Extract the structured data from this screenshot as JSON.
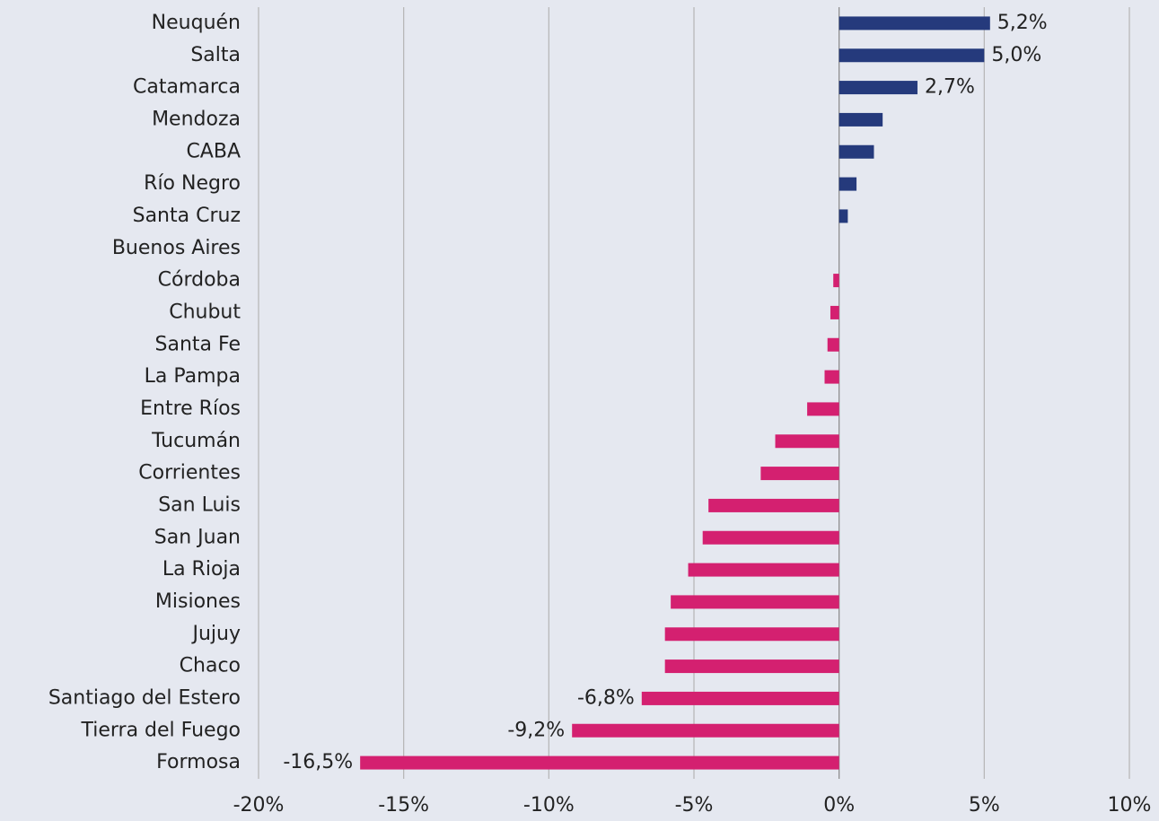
{
  "chart_data": {
    "type": "barh",
    "categories": [
      "Neuquén",
      "Salta",
      "Catamarca",
      "Mendoza",
      "CABA",
      "Río Negro",
      "Santa Cruz",
      "Buenos Aires",
      "Córdoba",
      "Chubut",
      "Santa Fe",
      "La Pampa",
      "Entre Ríos",
      "Tucumán",
      "Corrientes",
      "San Luis",
      "San Juan",
      "La Rioja",
      "Misiones",
      "Jujuy",
      "Chaco",
      "Santiago del Estero",
      "Tierra del Fuego",
      "Formosa"
    ],
    "values": [
      5.2,
      5.0,
      2.7,
      1.5,
      1.2,
      0.6,
      0.3,
      0.0,
      -0.2,
      -0.3,
      -0.4,
      -0.5,
      -1.1,
      -2.2,
      -2.7,
      -4.5,
      -4.7,
      -5.2,
      -5.8,
      -6.0,
      -6.0,
      -6.8,
      -9.2,
      -16.5
    ],
    "value_labels": [
      "5,2%",
      "5,0%",
      "2,7%",
      null,
      null,
      null,
      null,
      null,
      null,
      null,
      null,
      null,
      null,
      null,
      null,
      null,
      null,
      null,
      null,
      null,
      null,
      "-6,8%",
      "-9,2%",
      "-16,5%"
    ],
    "colors": [
      "#253a7c",
      "#253a7c",
      "#253a7c",
      "#253a7c",
      "#253a7c",
      "#253a7c",
      "#253a7c",
      "#555555",
      "#d42070",
      "#d42070",
      "#d42070",
      "#d42070",
      "#d42070",
      "#d42070",
      "#d42070",
      "#d42070",
      "#d42070",
      "#d42070",
      "#d42070",
      "#d42070",
      "#d42070",
      "#d42070",
      "#d42070",
      "#d42070"
    ],
    "xlim": [
      -20,
      10
    ],
    "xticks": [
      {
        "value": -20,
        "label": "-20%"
      },
      {
        "value": -15,
        "label": "-15%"
      },
      {
        "value": -10,
        "label": "-10%"
      },
      {
        "value": -5,
        "label": "-5%"
      },
      {
        "value": 0,
        "label": "0%"
      },
      {
        "value": 5,
        "label": "5%"
      },
      {
        "value": 10,
        "label": "10%"
      }
    ],
    "grid": true
  }
}
